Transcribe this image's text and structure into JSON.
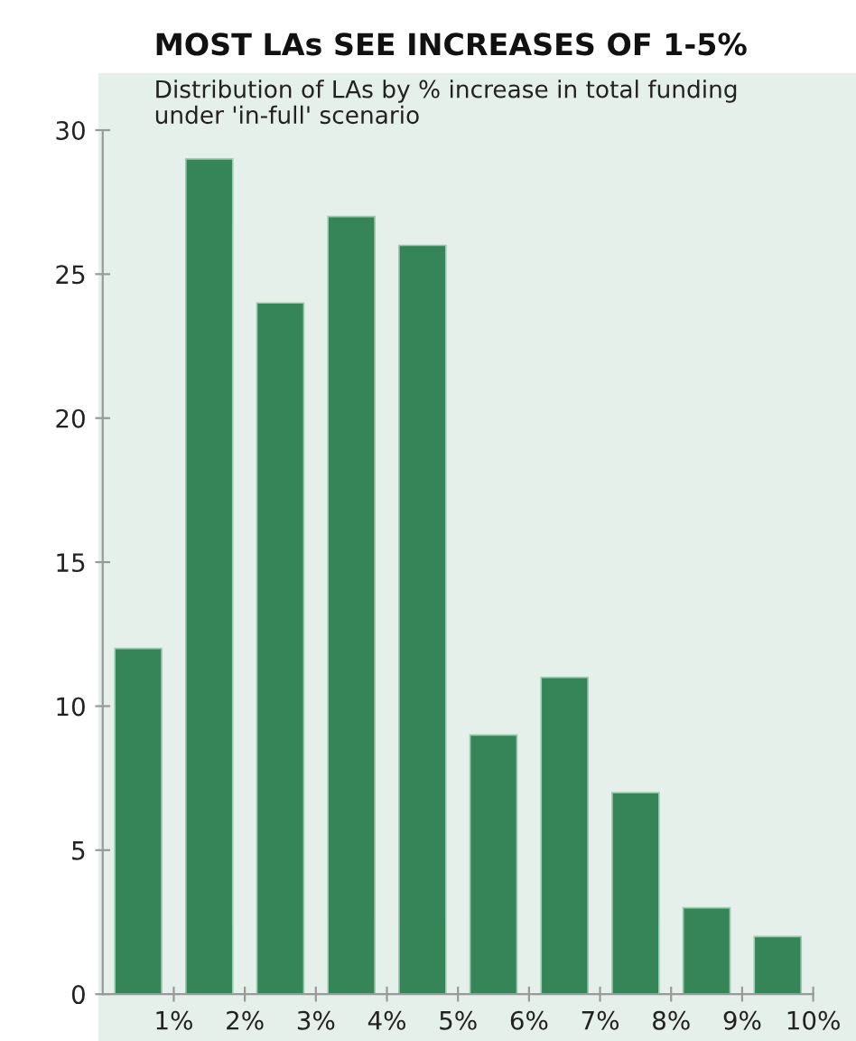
{
  "chart_data": {
    "type": "histogram",
    "title": "MOST LAs SEE INCREASES OF 1-5%",
    "subtitle": "Distribution of LAs by % increase in total funding\nunder 'in-full' scenario",
    "bins": [
      0,
      1,
      2,
      3,
      4,
      5,
      6,
      7,
      8,
      9,
      10
    ],
    "values": [
      12,
      29,
      24,
      27,
      26,
      9,
      11,
      7,
      3,
      2
    ],
    "color": "#358559",
    "xlim": [
      0,
      10
    ],
    "xticks": [
      {
        "value": 1,
        "label": "1%"
      },
      {
        "value": 2,
        "label": "2%"
      },
      {
        "value": 3,
        "label": "3%"
      },
      {
        "value": 4,
        "label": "4%"
      },
      {
        "value": 5,
        "label": "5%"
      },
      {
        "value": 6,
        "label": "6%"
      },
      {
        "value": 7,
        "label": "7%"
      },
      {
        "value": 8,
        "label": "8%"
      },
      {
        "value": 9,
        "label": "9%"
      },
      {
        "value": 10,
        "label": "10%"
      }
    ],
    "ylim": [
      0,
      30
    ],
    "yticks": [
      0,
      5,
      10,
      15,
      20,
      25,
      30
    ],
    "grid": false,
    "legend": false
  }
}
